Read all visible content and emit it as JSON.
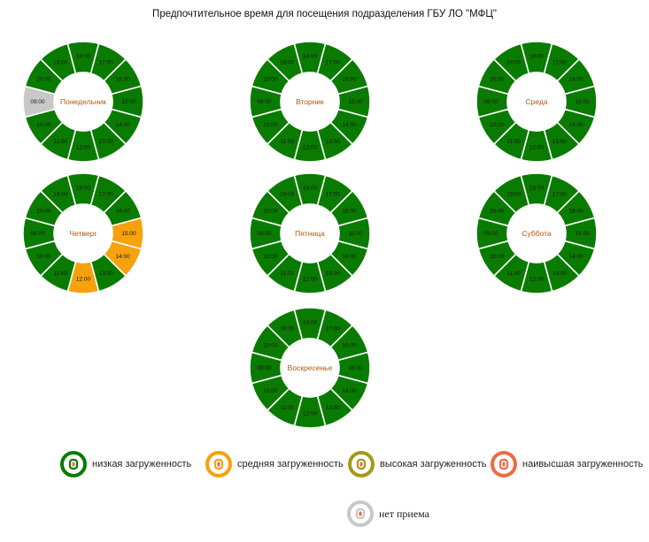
{
  "title": "Предпочтительное время для посещения подразделения ГБУ ЛО \"МФЦ\"",
  "colors": {
    "low": "#097b00",
    "medium": "#f7a20c",
    "high": "#a19b18",
    "highest": "#ee6a47",
    "closed": "#c8c8c8",
    "separator": "#ffffff",
    "day_label": "#b4560f"
  },
  "chart_data": {
    "type": "donut",
    "hours": [
      "09:00",
      "10:00",
      "11:00",
      "12:00",
      "13:00",
      "14:00",
      "15:00",
      "16:00",
      "17:00",
      "18:00",
      "19:00",
      "20:00"
    ],
    "days": [
      {
        "name": "Понедельник",
        "labels": [
          "09:00",
          "20:00",
          "19:00",
          "18:00",
          "17:00",
          "16:00",
          "15:00",
          "14:00",
          "13:00",
          "12:00",
          "11:00",
          "10:00"
        ],
        "load": [
          "closed",
          "low",
          "low",
          "low",
          "low",
          "low",
          "low",
          "low",
          "low",
          "low",
          "low",
          "low"
        ]
      },
      {
        "name": "Вторник",
        "labels": [
          "09:00",
          "20:00",
          "19:00",
          "18:00",
          "17:00",
          "16:00",
          "15:00",
          "14:00",
          "13:00",
          "12:00",
          "11:00",
          "10:00"
        ],
        "load": [
          "low",
          "low",
          "low",
          "low",
          "low",
          "low",
          "low",
          "low",
          "low",
          "low",
          "low",
          "low"
        ]
      },
      {
        "name": "Среда",
        "labels": [
          "09:00",
          "20:00",
          "19:00",
          "18:00",
          "17:00",
          "16:00",
          "15:00",
          "14:00",
          "13:00",
          "12:00",
          "11:00",
          "10:00"
        ],
        "load": [
          "low",
          "low",
          "low",
          "low",
          "low",
          "low",
          "low",
          "low",
          "low",
          "low",
          "low",
          "low"
        ]
      },
      {
        "name": "Четверг",
        "labels": [
          "09:00",
          "20:00",
          "19:00",
          "18:00",
          "17:00",
          "16:00",
          "15:00",
          "14:00",
          "13:00",
          "12:00",
          "11:00",
          "10:00"
        ],
        "load": [
          "low",
          "low",
          "low",
          "low",
          "low",
          "low",
          "medium",
          "medium",
          "low",
          "medium",
          "low",
          "low"
        ]
      },
      {
        "name": "Пятница",
        "labels": [
          "09:00",
          "20:00",
          "19:00",
          "18:00",
          "17:00",
          "16:00",
          "15:00",
          "14:00",
          "13:00",
          "12:00",
          "11:00",
          "10:00"
        ],
        "load": [
          "low",
          "low",
          "low",
          "low",
          "low",
          "low",
          "low",
          "low",
          "low",
          "low",
          "low",
          "low"
        ]
      },
      {
        "name": "Суббота",
        "labels": [
          "09:00",
          "20:00",
          "19:00",
          "18:00",
          "17:00",
          "16:00",
          "15:00",
          "14:00",
          "13:00",
          "12:00",
          "11:00",
          "10:00"
        ],
        "load": [
          "low",
          "low",
          "low",
          "low",
          "low",
          "low",
          "low",
          "low",
          "low",
          "low",
          "low",
          "low"
        ]
      },
      {
        "name": "Воскресенье",
        "labels": [
          "09:00",
          "20:00",
          "19:00",
          "18:00",
          "17:00",
          "16:00",
          "15:00",
          "14:00",
          "13:00",
          "12:00",
          "11:00",
          "10:00"
        ],
        "load": [
          "low",
          "low",
          "low",
          "low",
          "low",
          "low",
          "low",
          "low",
          "low",
          "low",
          "low",
          "low"
        ]
      }
    ]
  },
  "legend": [
    {
      "key": "low",
      "label": "низкая загруженность"
    },
    {
      "key": "medium",
      "label": "средняя загруженность"
    },
    {
      "key": "high",
      "label": "высокая загруженность"
    },
    {
      "key": "highest",
      "label": "наивысшая загруженность"
    },
    {
      "key": "closed",
      "label": "нет приема"
    }
  ]
}
